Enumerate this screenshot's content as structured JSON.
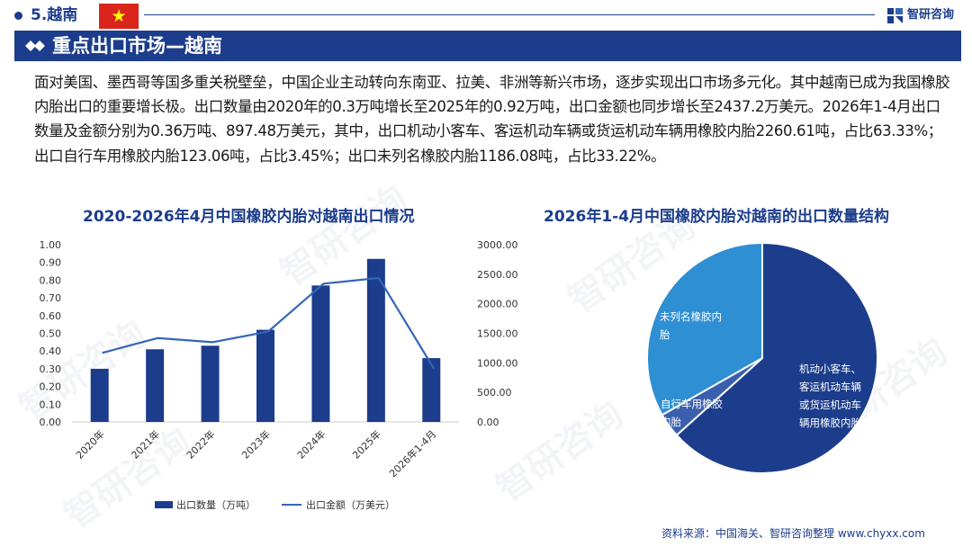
{
  "header": {
    "section_index": "5.越南",
    "brand": "智研咨询"
  },
  "section": {
    "title": "重点出口市场—越南"
  },
  "paragraph": "面对美国、墨西哥等国多重关税壁垒，中国企业主动转向东南亚、拉美、非洲等新兴市场，逐步实现出口市场多元化。其中越南已成为我国橡胶内胎出口的重要增长极。出口数量由2020年的0.3万吨增长至2025年的0.92万吨，出口金额也同步增长至2437.2万美元。2026年1-4月出口数量及金额分别为0.36万吨、897.48万美元，其中，出口机动小客车、客运机动车辆或货运机动车辆用橡胶内胎2260.61吨，占比63.33%；出口自行车用橡胶内胎123.06吨，占比3.45%；出口未列名橡胶内胎1186.08吨，占比33.22%。",
  "chart_data": [
    {
      "type": "bar",
      "title": "2020-2026年4月中国橡胶内胎对越南出口情况",
      "categories": [
        "2020年",
        "2021年",
        "2022年",
        "2023年",
        "2024年",
        "2025年",
        "2026年1-4月"
      ],
      "series": [
        {
          "name": "出口数量（万吨）",
          "type": "bar",
          "axis": "left",
          "color": "#1c3d8c",
          "values": [
            0.3,
            0.41,
            0.43,
            0.52,
            0.77,
            0.92,
            0.36
          ]
        },
        {
          "name": "出口金额（万美元）",
          "type": "line",
          "axis": "right",
          "color": "#3565b8",
          "values": [
            1170,
            1420,
            1350,
            1530,
            2340,
            2437.2,
            897.48
          ]
        }
      ],
      "y_left": {
        "ylim": [
          0,
          1.0
        ],
        "ticks": [
          "0.00",
          "0.10",
          "0.20",
          "0.30",
          "0.40",
          "0.50",
          "0.60",
          "0.70",
          "0.80",
          "0.90",
          "1.00"
        ]
      },
      "y_right": {
        "ylim": [
          0,
          3000
        ],
        "ticks": [
          "0.00",
          "500.00",
          "1000.00",
          "1500.00",
          "2000.00",
          "2500.00",
          "3000.00"
        ]
      },
      "legend": "bottom",
      "grid": false
    },
    {
      "type": "pie",
      "title": "2026年1-4月中国橡胶内胎对越南的出口数量结构",
      "slices": [
        {
          "label_lines": [
            "机动小客车、",
            "客运机动车辆",
            "或货运机动车",
            "辆用橡胶内胎"
          ],
          "value": 63.33,
          "color": "#1c3d8c"
        },
        {
          "label_lines": [
            "自行车用橡胶",
            "内胎"
          ],
          "value": 3.45,
          "color": "#3a5fad"
        },
        {
          "label_lines": [
            "未列名橡胶内",
            "胎"
          ],
          "value": 33.22,
          "color": "#2f8fd3"
        }
      ]
    }
  ],
  "footer": {
    "source": "资料来源：中国海关、智研咨询整理  www.chyxx.com"
  },
  "watermark": "智研咨询",
  "colors": {
    "primary": "#1c3d8c",
    "flag_red": "#da251d",
    "flag_star": "#ffff00"
  }
}
